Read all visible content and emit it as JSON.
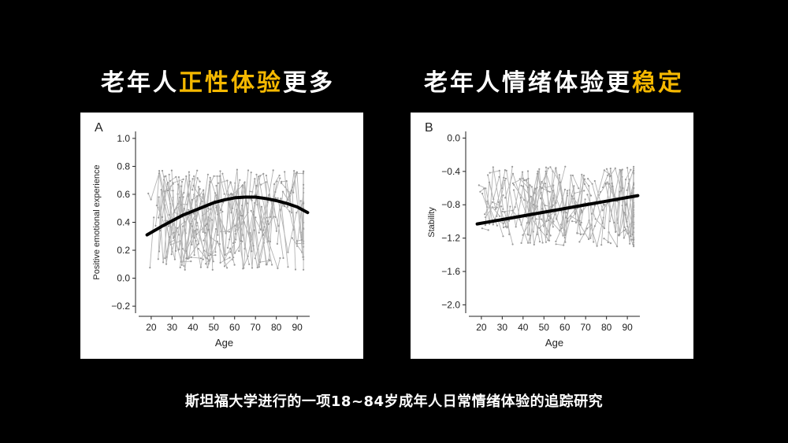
{
  "headings": {
    "left": {
      "prefix": "老年人",
      "highlight": "正性体验",
      "suffix": "更多"
    },
    "right": {
      "prefix": "老年人情绪体验更",
      "highlight": "稳定"
    }
  },
  "caption": "斯坦福大学进行的一项18~84岁成年人日常情绪体验的追踪研究",
  "colors": {
    "background": "#000000",
    "accent": "#f5b800",
    "text": "#ffffff",
    "scatter": "#b3b3b3",
    "trend": "#000000"
  },
  "chart_data": [
    {
      "type": "scatter",
      "panel_label": "A",
      "xlabel": "Age",
      "ylabel": "Positive emotional experience",
      "xlim": [
        14,
        96
      ],
      "ylim": [
        -0.25,
        1.05
      ],
      "xticks": [
        "20",
        "30",
        "40",
        "50",
        "60",
        "70",
        "80",
        "90"
      ],
      "yticks": [
        "1.0",
        "0.8",
        "0.6",
        "0.4",
        "0.2",
        "0.0",
        "−0.2"
      ],
      "trend": {
        "x": [
          18,
          25,
          30,
          35,
          40,
          45,
          50,
          55,
          60,
          65,
          70,
          75,
          80,
          85,
          90,
          95
        ],
        "y": [
          0.31,
          0.37,
          0.41,
          0.45,
          0.48,
          0.51,
          0.54,
          0.56,
          0.575,
          0.58,
          0.58,
          0.57,
          0.555,
          0.535,
          0.51,
          0.47
        ]
      },
      "cloud": {
        "x_range": [
          18,
          93
        ],
        "y_center": 0.42,
        "y_spread": 0.36,
        "y_clip": [
          -0.2,
          1.0
        ]
      }
    },
    {
      "type": "scatter",
      "panel_label": "B",
      "xlabel": "Age",
      "ylabel": "Stability",
      "xlim": [
        14,
        96
      ],
      "ylim": [
        -2.1,
        0.08
      ],
      "xticks": [
        "20",
        "30",
        "40",
        "50",
        "60",
        "70",
        "80",
        "90"
      ],
      "yticks": [
        "0.0",
        "−0.4",
        "−0.8",
        "−1.2",
        "−1.6",
        "−2.0"
      ],
      "trend": {
        "x": [
          18,
          95
        ],
        "y": [
          -1.03,
          -0.69
        ]
      },
      "cloud": {
        "x_range": [
          18,
          93
        ],
        "y_center": -0.82,
        "y_spread": 0.48,
        "y_clip": [
          -1.95,
          -0.1
        ]
      }
    }
  ]
}
